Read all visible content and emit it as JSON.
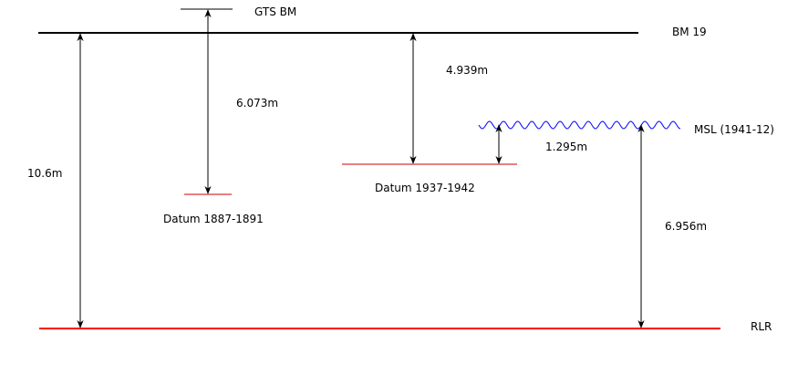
{
  "labels": {
    "gts_bm": "GTS BM",
    "bm19": "BM  19",
    "msl": "MSL (1941-12)",
    "rlr": "RLR",
    "datum_1887": "Datum 1887-1891",
    "datum_1937": "Datum 1937-1942"
  },
  "dimensions": {
    "total": "10.6m",
    "gts_to_1887": "6.073m",
    "bm19_to_1937": "4.939m",
    "datum1937_to_msl": "1.295m",
    "msl_to_rlr": "6.956m"
  },
  "colors": {
    "line": "#000000",
    "datum": "#cc0000",
    "rlr": "#ff0000",
    "msl_wave": "#0000ff"
  }
}
